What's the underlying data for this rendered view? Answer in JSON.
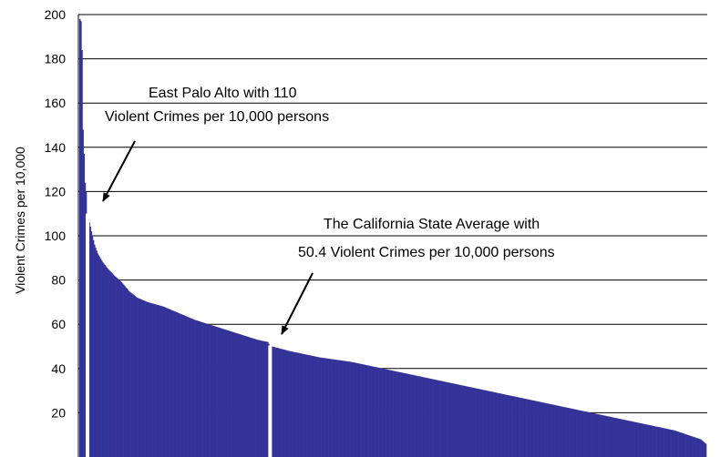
{
  "chart_data": {
    "type": "bar",
    "title": "",
    "xlabel": "",
    "ylabel": "Violent Crimes per 10,000",
    "ylim": [
      0,
      200
    ],
    "yticks": [
      20,
      40,
      60,
      80,
      100,
      120,
      140,
      160,
      180,
      200
    ],
    "grid": true,
    "bar_color": "#333399",
    "highlight_color": "#ffffff",
    "anchor_values": [
      [
        0,
        198
      ],
      [
        1,
        197
      ],
      [
        2,
        184
      ],
      [
        3,
        148
      ],
      [
        4,
        137
      ],
      [
        5,
        124
      ],
      [
        6,
        120
      ],
      [
        7,
        110
      ],
      [
        8,
        108
      ],
      [
        9,
        106
      ],
      [
        10,
        104
      ],
      [
        12,
        100
      ],
      [
        14,
        96
      ],
      [
        17,
        92
      ],
      [
        22,
        88
      ],
      [
        27,
        85
      ],
      [
        33,
        82
      ],
      [
        40,
        79
      ],
      [
        47,
        75
      ],
      [
        55,
        72
      ],
      [
        65,
        70
      ],
      [
        80,
        68
      ],
      [
        95,
        65
      ],
      [
        110,
        62
      ],
      [
        130,
        59
      ],
      [
        150,
        56
      ],
      [
        170,
        53
      ],
      [
        180,
        52
      ],
      [
        182,
        50.4
      ],
      [
        184,
        50
      ],
      [
        200,
        48
      ],
      [
        230,
        45
      ],
      [
        260,
        43
      ],
      [
        290,
        40
      ],
      [
        320,
        37
      ],
      [
        350,
        34
      ],
      [
        380,
        31
      ],
      [
        420,
        27
      ],
      [
        460,
        23
      ],
      [
        500,
        19
      ],
      [
        540,
        15
      ],
      [
        570,
        12
      ],
      [
        595,
        8
      ],
      [
        600,
        6
      ]
    ],
    "highlights": [
      {
        "index": 7,
        "value": 110
      },
      {
        "index": 182,
        "value": 50.4
      }
    ],
    "annotations": [
      {
        "line1": "East Palo Alto with 110",
        "line2": "Violent Crimes per 10,000 persons"
      },
      {
        "line1": "The California State Average with",
        "line2": "50.4 Violent Crimes per 10,000 persons"
      }
    ]
  }
}
